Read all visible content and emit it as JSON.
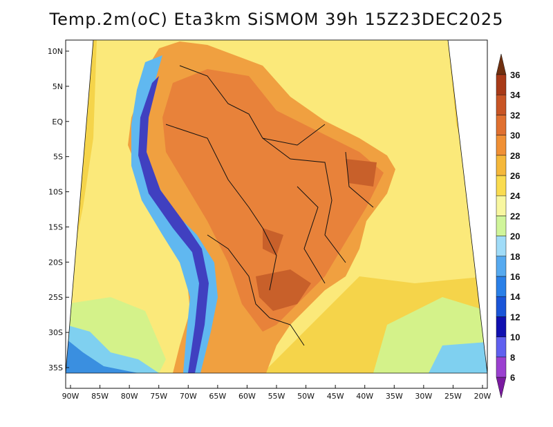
{
  "title": "Temp.2m(oC) Eta3km SiSMOM 39h 15Z23DEC2025",
  "map": {
    "lon_ticks": [
      "90W",
      "85W",
      "80W",
      "75W",
      "70W",
      "65W",
      "60W",
      "55W",
      "50W",
      "45W",
      "40W",
      "35W",
      "30W",
      "25W",
      "20W"
    ],
    "lat_ticks": [
      "10N",
      "5N",
      "EQ",
      "5S",
      "10S",
      "15S",
      "20S",
      "25S",
      "30S",
      "35S"
    ],
    "colors": {
      "ocean_warm": "#f5d44a",
      "ocean_mild": "#fbe97a",
      "ocean_cool": "#d4f28a",
      "ocean_cold": "#7fd0f0",
      "ocean_colder": "#3a8fe0",
      "land_hot": "#e8823a",
      "land_very_hot": "#c8602a",
      "land_warm": "#f0a040",
      "andes_cold": "#4040c0",
      "andes_mid": "#60b8f0"
    }
  },
  "colorbar": {
    "labels": [
      "6",
      "8",
      "10",
      "12",
      "14",
      "16",
      "18",
      "20",
      "22",
      "24",
      "26",
      "28",
      "30",
      "32",
      "34",
      "36"
    ],
    "colors": [
      "#7a1aa0",
      "#9b40d0",
      "#6060f0",
      "#1010b0",
      "#1a55d8",
      "#2a80e8",
      "#56aaf0",
      "#a0dcf8",
      "#d0f59a",
      "#f8f7a0",
      "#fadc50",
      "#f5b83a",
      "#f09035",
      "#e07030",
      "#c85525",
      "#a83a18",
      "#703010"
    ]
  }
}
